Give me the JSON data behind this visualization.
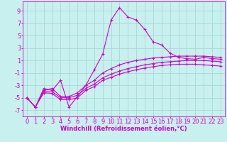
{
  "background_color": "#c8f0ee",
  "grid_color": "#a8d8d8",
  "line_color": "#cc00cc",
  "xlabel": "Windchill (Refroidissement éolien,°C)",
  "xlim": [
    -0.5,
    23.5
  ],
  "ylim": [
    -8.0,
    10.5
  ],
  "yticks": [
    -7,
    -5,
    -3,
    -1,
    1,
    3,
    5,
    7,
    9
  ],
  "xticks": [
    0,
    1,
    2,
    3,
    4,
    5,
    6,
    7,
    8,
    9,
    10,
    11,
    12,
    13,
    14,
    15,
    16,
    17,
    18,
    19,
    20,
    21,
    22,
    23
  ],
  "series": [
    {
      "x": [
        0,
        1,
        2,
        3,
        4,
        5,
        6,
        7,
        8,
        9,
        10,
        11,
        12,
        13,
        14,
        15,
        16,
        17,
        18,
        19,
        20,
        21,
        22,
        23
      ],
      "y": [
        -5,
        -6.5,
        -3.5,
        -3.8,
        -2.2,
        -6.5,
        -4.8,
        -3.0,
        -0.5,
        2.0,
        7.5,
        9.5,
        8.0,
        7.5,
        6.0,
        4.0,
        3.5,
        2.2,
        1.5,
        1.3,
        1.2,
        1.5,
        1.3,
        1.2
      ]
    },
    {
      "x": [
        0,
        1,
        2,
        3,
        4,
        5,
        6,
        7,
        8,
        9,
        10,
        11,
        12,
        13,
        14,
        15,
        16,
        17,
        18,
        19,
        20,
        21,
        22,
        23
      ],
      "y": [
        -5.0,
        -6.5,
        -3.8,
        -3.5,
        -4.8,
        -4.8,
        -4.2,
        -3.0,
        -2.2,
        -1.0,
        -0.3,
        0.3,
        0.7,
        1.0,
        1.2,
        1.4,
        1.5,
        1.6,
        1.7,
        1.7,
        1.7,
        1.7,
        1.6,
        1.5
      ]
    },
    {
      "x": [
        0,
        1,
        2,
        3,
        4,
        5,
        6,
        7,
        8,
        9,
        10,
        11,
        12,
        13,
        14,
        15,
        16,
        17,
        18,
        19,
        20,
        21,
        22,
        23
      ],
      "y": [
        -5.0,
        -6.5,
        -4.0,
        -4.0,
        -5.0,
        -5.0,
        -4.6,
        -3.5,
        -2.8,
        -1.8,
        -1.2,
        -0.7,
        -0.3,
        0.0,
        0.3,
        0.5,
        0.7,
        0.8,
        0.9,
        1.0,
        1.0,
        1.0,
        0.9,
        0.8
      ]
    },
    {
      "x": [
        0,
        1,
        2,
        3,
        4,
        5,
        6,
        7,
        8,
        9,
        10,
        11,
        12,
        13,
        14,
        15,
        16,
        17,
        18,
        19,
        20,
        21,
        22,
        23
      ],
      "y": [
        -5.0,
        -6.5,
        -4.2,
        -4.3,
        -5.3,
        -5.3,
        -5.0,
        -3.8,
        -3.2,
        -2.2,
        -1.7,
        -1.2,
        -0.8,
        -0.5,
        -0.2,
        0.0,
        0.2,
        0.3,
        0.4,
        0.4,
        0.4,
        0.3,
        0.2,
        0.1
      ]
    }
  ],
  "xlabel_fontsize": 6,
  "tick_fontsize": 6,
  "figsize": [
    3.2,
    2.0
  ],
  "dpi": 100
}
